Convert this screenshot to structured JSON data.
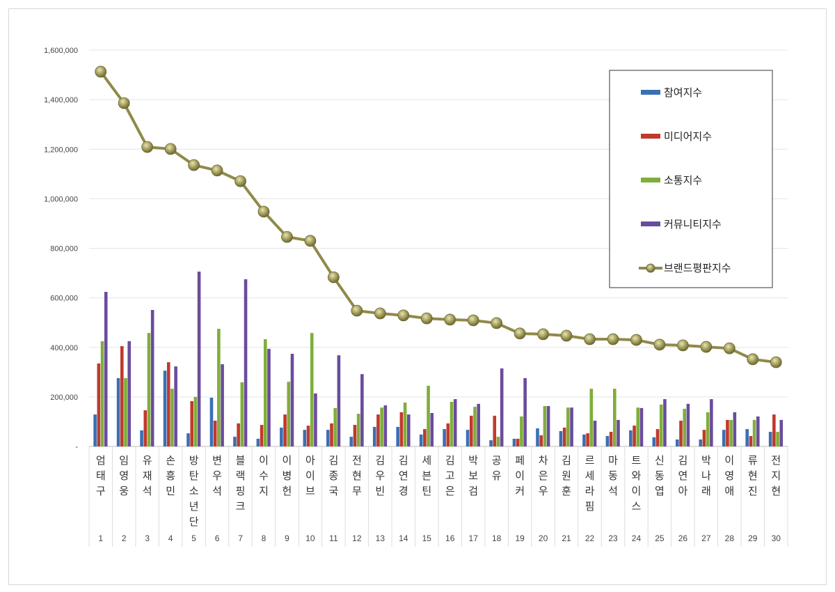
{
  "chart_data": {
    "type": "bar+line",
    "ylim": [
      0,
      1600000
    ],
    "yticks": [
      "-",
      "200,000",
      "400,000",
      "600,000",
      "800,000",
      "1,000,000",
      "1,200,000",
      "1,400,000",
      "1,600,000"
    ],
    "grid": true,
    "legend_position": "top-right",
    "categories": [
      "엄태구",
      "임영웅",
      "유재석",
      "손흥민",
      "방탄소년단",
      "변우석",
      "블랙핑크",
      "이수지",
      "이병헌",
      "아이브",
      "김종국",
      "전현무",
      "김우빈",
      "김연경",
      "세븐틴",
      "김고은",
      "박보검",
      "공유",
      "페이커",
      "차은우",
      "김원훈",
      "르세라핌",
      "마동석",
      "트와이스",
      "신동엽",
      "김연아",
      "박나래",
      "이영애",
      "류현진",
      "전지현"
    ],
    "ranks": [
      "1",
      "2",
      "3",
      "4",
      "5",
      "6",
      "7",
      "8",
      "9",
      "10",
      "11",
      "12",
      "13",
      "14",
      "15",
      "16",
      "17",
      "18",
      "19",
      "20",
      "21",
      "22",
      "23",
      "24",
      "25",
      "26",
      "27",
      "28",
      "29",
      "30"
    ],
    "series": [
      {
        "name": "참여지수",
        "type": "bar",
        "color": "#3a6fb5",
        "values": [
          129000,
          276000,
          65000,
          306000,
          53000,
          197000,
          39000,
          31000,
          76000,
          67000,
          67000,
          39000,
          79000,
          79000,
          48000,
          70000,
          67000,
          25000,
          31000,
          73000,
          62000,
          48000,
          42000,
          65000,
          37000,
          28000,
          28000,
          67000,
          70000,
          59000
        ]
      },
      {
        "name": "미디어지수",
        "type": "bar",
        "color": "#c0392b",
        "values": [
          335000,
          405000,
          146000,
          340000,
          183000,
          104000,
          93000,
          87000,
          129000,
          84000,
          93000,
          87000,
          129000,
          138000,
          70000,
          93000,
          124000,
          124000,
          31000,
          45000,
          76000,
          53000,
          59000,
          84000,
          70000,
          104000,
          67000,
          107000,
          42000,
          129000
        ]
      },
      {
        "name": "소통지수",
        "type": "bar",
        "color": "#7fae3a",
        "values": [
          425000,
          276000,
          458000,
          233000,
          200000,
          475000,
          259000,
          433000,
          261000,
          458000,
          155000,
          132000,
          157000,
          177000,
          245000,
          180000,
          160000,
          39000,
          121000,
          163000,
          157000,
          233000,
          233000,
          157000,
          169000,
          152000,
          138000,
          107000,
          107000,
          59000
        ]
      },
      {
        "name": "커뮤니티지수",
        "type": "bar",
        "color": "#6a4c9c",
        "values": [
          624000,
          425000,
          551000,
          323000,
          706000,
          332000,
          675000,
          394000,
          374000,
          214000,
          368000,
          292000,
          166000,
          129000,
          135000,
          191000,
          172000,
          315000,
          276000,
          163000,
          157000,
          104000,
          107000,
          155000,
          191000,
          172000,
          191000,
          138000,
          121000,
          107000
        ]
      },
      {
        "name": "브랜드평판지수",
        "type": "line",
        "color": "#8f8a4a",
        "values": [
          1513000,
          1386000,
          1209000,
          1201000,
          1136000,
          1114000,
          1071000,
          948000,
          846000,
          830000,
          683000,
          548000,
          537000,
          529000,
          517000,
          512000,
          509000,
          498000,
          456000,
          453000,
          447000,
          433000,
          433000,
          430000,
          411000,
          408000,
          402000,
          396000,
          352000,
          340000
        ]
      }
    ]
  }
}
